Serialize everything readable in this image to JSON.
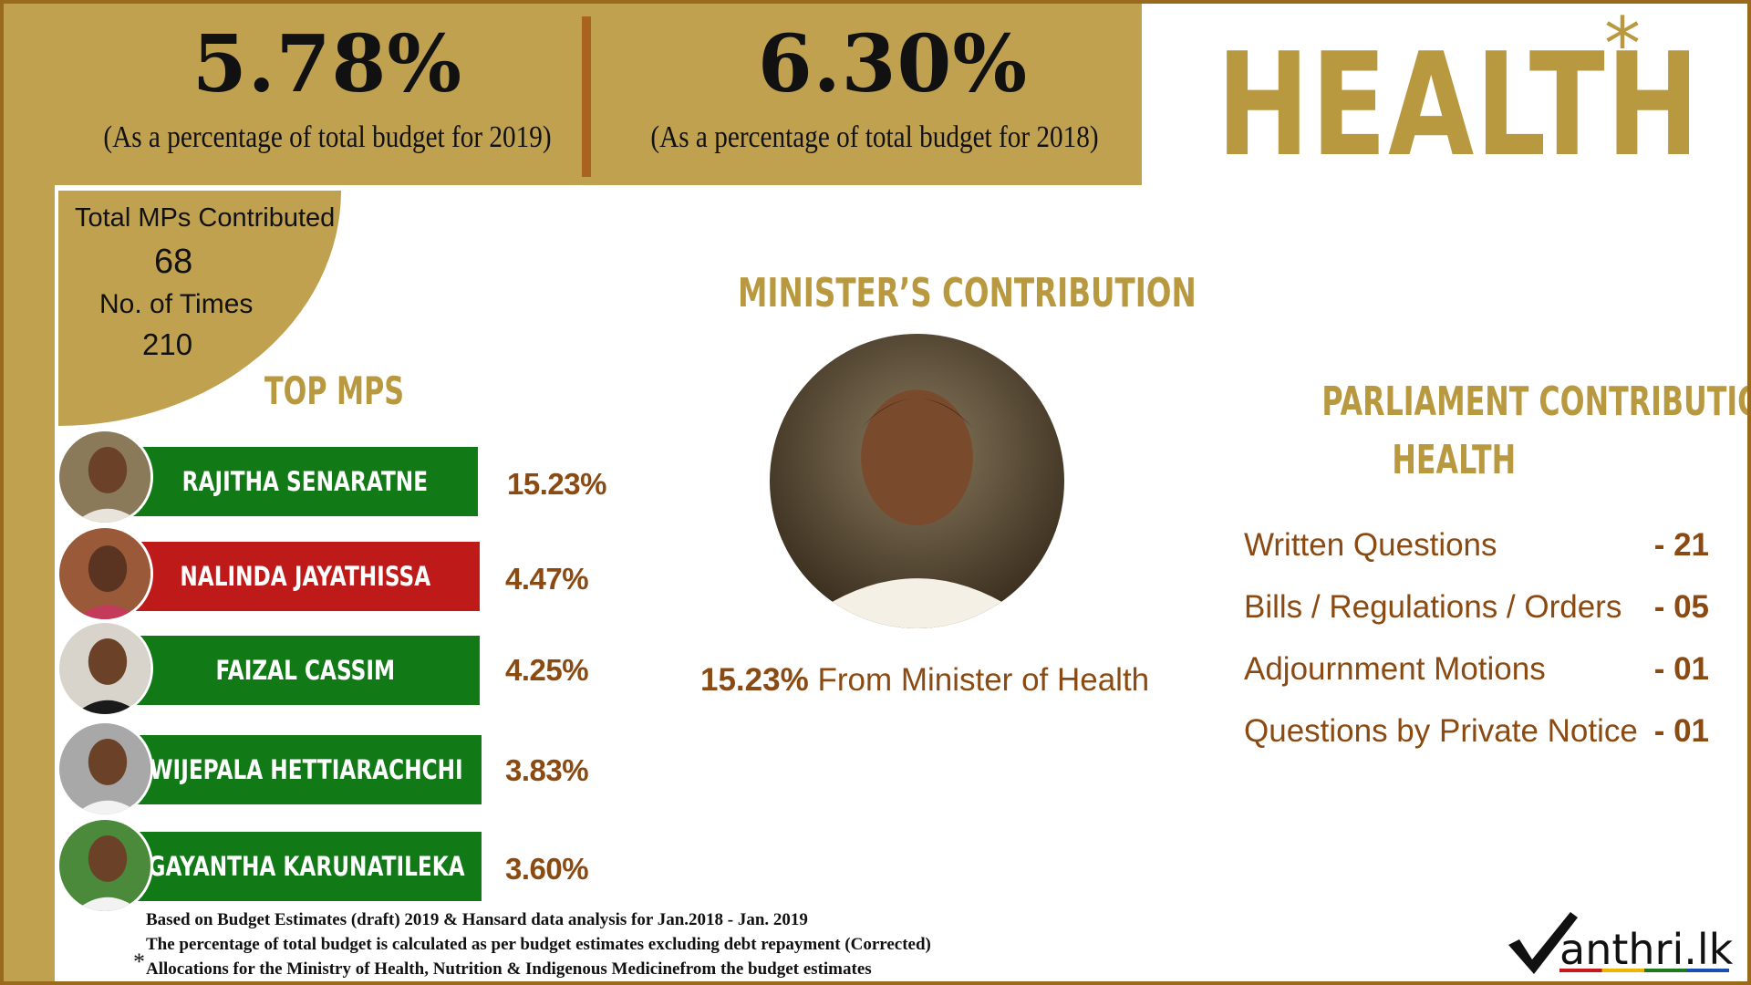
{
  "header": {
    "pct_2019": "5.78%",
    "pct_2019_caption": "(As a percentage of total budget for 2019)",
    "pct_2018": "6.30%",
    "pct_2018_caption": "(As a percentage of total budget for 2018)",
    "sector": "HEALTH",
    "asterisk": "*"
  },
  "stats": {
    "mps_label": "Total MPs Contributed",
    "mps_value": "68",
    "times_label": "No. of Times",
    "times_value": "210"
  },
  "top_mps": {
    "title": "TOP MPS",
    "items": [
      {
        "name": "RAJITHA SENARATNE",
        "pct": "15.23%",
        "color": "#117a17"
      },
      {
        "name": "NALINDA JAYATHISSA",
        "pct": "4.47%",
        "color": "#be1a1a"
      },
      {
        "name": "FAIZAL CASSIM",
        "pct": "4.25%",
        "color": "#117a17"
      },
      {
        "name": "WIJEPALA HETTIARACHCHI",
        "pct": "3.83%",
        "color": "#117a17"
      },
      {
        "name": "GAYANTHA  KARUNATILEKA",
        "pct": "3.60%",
        "color": "#117a17"
      }
    ]
  },
  "minister": {
    "title": "MINISTER’S  CONTRIBUTION",
    "caption_pct": "15.23%",
    "caption_text": " From Minister of Health"
  },
  "parliament": {
    "title_line1": "PARLIAMENT CONTRIBUTION FOR",
    "title_line2": "HEALTH",
    "rows": [
      {
        "label": "Written Questions",
        "value": "- 21"
      },
      {
        "label": "Bills / Regulations / Orders",
        "value": "- 05"
      },
      {
        "label": "Adjournment Motions",
        "value": "- 01"
      },
      {
        "label": "Questions by Private Notice",
        "value": "- 01"
      }
    ]
  },
  "footnotes": {
    "line1": "Based on Budget Estimates (draft) 2019 & Hansard data analysis for Jan.2018 - Jan. 2019",
    "line2": "The percentage of total budget is calculated as per budget estimates excluding debt repayment (Corrected)",
    "star": "*",
    "line3": "Allocations for the Ministry of Health, Nutrition & Indigenous Medicinefrom the budget estimates"
  },
  "logo": {
    "text": "anthri.lk"
  },
  "colors": {
    "gold": "#bfa150",
    "brown": "#8a4a12",
    "green": "#117a17",
    "red": "#be1a1a"
  }
}
